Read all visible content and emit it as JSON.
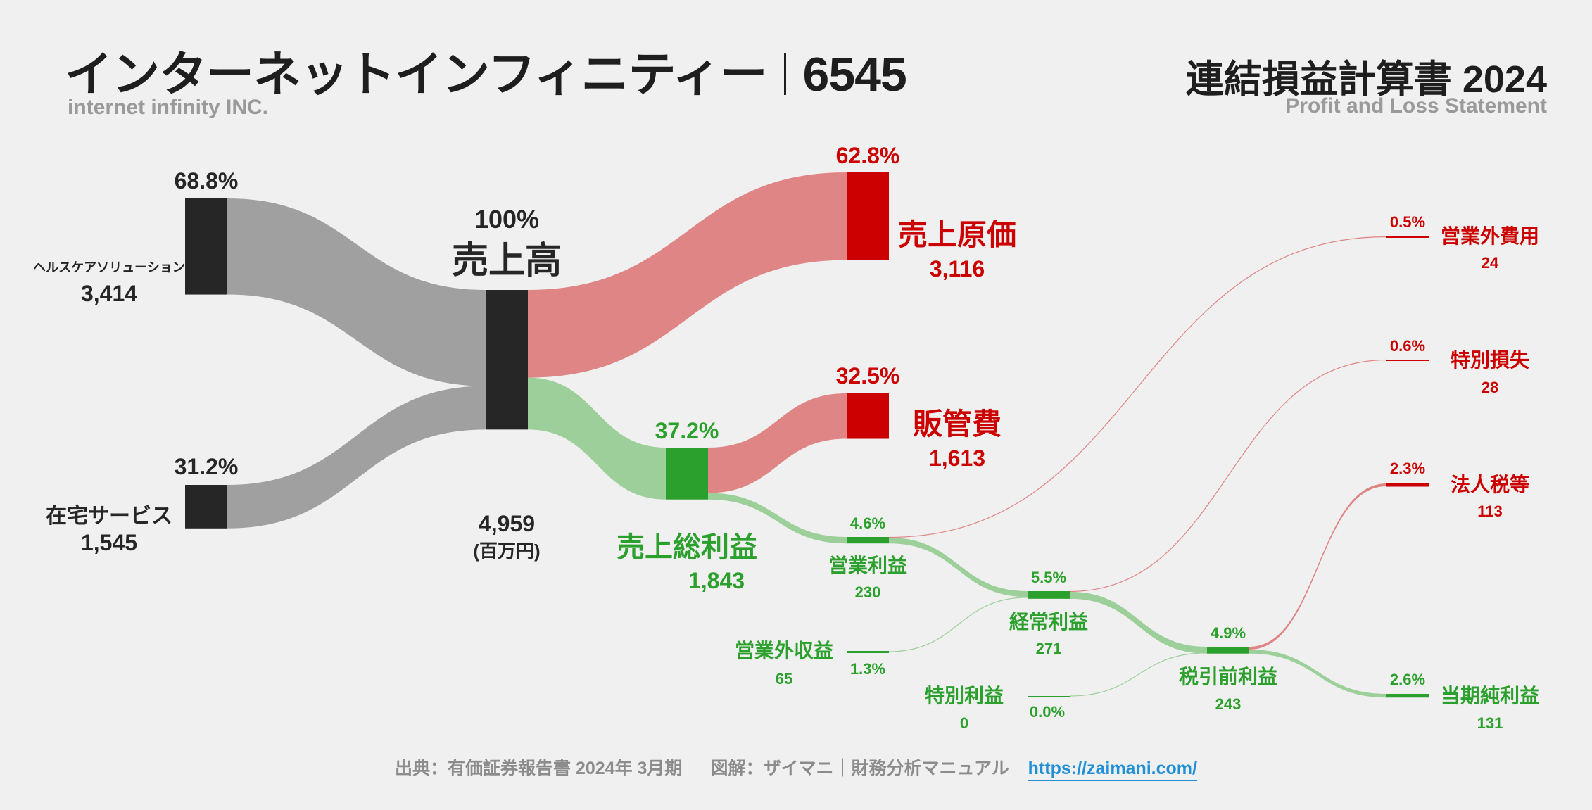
{
  "header": {
    "company_name": "インターネットインフィニティー",
    "ticker": "6545",
    "company_name_en": "internet infinity INC.",
    "statement_title": "連結損益計算書 2024",
    "statement_subtitle": "Profit and Loss Statement"
  },
  "footer": {
    "source": "出典：有価証券報告書 2024年 3月期",
    "credit": "図解：ザイマニ｜財務分析マニュアル",
    "url": "https://zaimani.com/"
  },
  "colors": {
    "revenue": "#262626",
    "cost": "#cc0000",
    "cost_flow": "#e08585",
    "profit": "#2ca02c",
    "profit_flow": "#9dcf9a",
    "segment_flow": "#a0a0a0"
  },
  "chart_data": {
    "type": "sankey",
    "unit": "(百万円)",
    "nodes": [
      {
        "id": "healthcare",
        "name": "ヘルスケアソリューション",
        "value": 3414,
        "pct": "68.8%"
      },
      {
        "id": "homecare",
        "name": "在宅サービス",
        "value": 1545,
        "pct": "31.2%"
      },
      {
        "id": "revenue",
        "name": "売上高",
        "value": 4959,
        "pct": "100%"
      },
      {
        "id": "cogs",
        "name": "売上原価",
        "value": 3116,
        "pct": "62.8%"
      },
      {
        "id": "gross",
        "name": "売上総利益",
        "value": 1843,
        "pct": "37.2%"
      },
      {
        "id": "sga",
        "name": "販管費",
        "value": 1613,
        "pct": "32.5%"
      },
      {
        "id": "op",
        "name": "営業利益",
        "value": 230,
        "pct": "4.6%"
      },
      {
        "id": "nonop_inc",
        "name": "営業外収益",
        "value": 65,
        "pct": "1.3%"
      },
      {
        "id": "nonop_exp",
        "name": "営業外費用",
        "value": 24,
        "pct": "0.5%"
      },
      {
        "id": "ordinary",
        "name": "経常利益",
        "value": 271,
        "pct": "5.5%"
      },
      {
        "id": "sp_gain",
        "name": "特別利益",
        "value": 0,
        "pct": "0.0%"
      },
      {
        "id": "sp_loss",
        "name": "特別損失",
        "value": 28,
        "pct": "0.6%"
      },
      {
        "id": "pretax",
        "name": "税引前利益",
        "value": 243,
        "pct": "4.9%"
      },
      {
        "id": "tax",
        "name": "法人税等",
        "value": 113,
        "pct": "2.3%"
      },
      {
        "id": "net",
        "name": "当期純利益",
        "value": 131,
        "pct": "2.6%"
      }
    ],
    "links": [
      {
        "source": "healthcare",
        "target": "revenue",
        "value": 3414
      },
      {
        "source": "homecare",
        "target": "revenue",
        "value": 1545
      },
      {
        "source": "revenue",
        "target": "cogs",
        "value": 3116
      },
      {
        "source": "revenue",
        "target": "gross",
        "value": 1843
      },
      {
        "source": "gross",
        "target": "sga",
        "value": 1613
      },
      {
        "source": "gross",
        "target": "op",
        "value": 230
      },
      {
        "source": "op",
        "target": "ordinary",
        "value": 230
      },
      {
        "source": "op",
        "target": "nonop_exp",
        "value": 24
      },
      {
        "source": "nonop_inc",
        "target": "ordinary",
        "value": 65
      },
      {
        "source": "ordinary",
        "target": "pretax",
        "value": 243
      },
      {
        "source": "ordinary",
        "target": "sp_loss",
        "value": 28
      },
      {
        "source": "sp_gain",
        "target": "pretax",
        "value": 0
      },
      {
        "source": "pretax",
        "target": "net",
        "value": 131
      },
      {
        "source": "pretax",
        "target": "tax",
        "value": 113
      }
    ]
  }
}
